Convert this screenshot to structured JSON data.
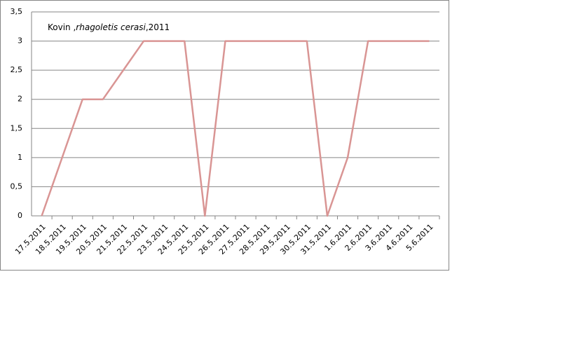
{
  "chart_data": {
    "type": "line",
    "title": [
      "Kovin ,",
      "rhagoletis cerasi",
      ",2011"
    ],
    "categories": [
      "17.5.2011",
      "18.5.2011",
      "19.5.2011",
      "20.5.2011",
      "21.5.2011",
      "22.5.2011",
      "23.5.2011",
      "24.5.2011",
      "25.5.2011",
      "26.5.2011",
      "27.5.2011",
      "28.5.2011",
      "29.5.2011",
      "30.5.2011",
      "31.5.2011",
      "1.6.2011",
      "2.6.2011",
      "3.6.2011",
      "4.6.2011",
      "5.6.2011"
    ],
    "values": [
      0,
      1,
      2,
      2,
      2.5,
      3,
      3,
      3,
      0,
      3,
      3,
      3,
      3,
      3,
      0,
      1,
      3,
      3,
      3,
      3
    ],
    "color": "#d99594",
    "ylim": [
      0,
      3.5
    ],
    "yticks": [
      0,
      {
        "value": 0.5,
        "label": "0,5"
      },
      1,
      {
        "value": 1.5,
        "label": "1,5"
      },
      2,
      {
        "value": 2.5,
        "label": "2,5"
      },
      3,
      {
        "value": 3.5,
        "label": "3,5"
      }
    ],
    "grid": true
  }
}
